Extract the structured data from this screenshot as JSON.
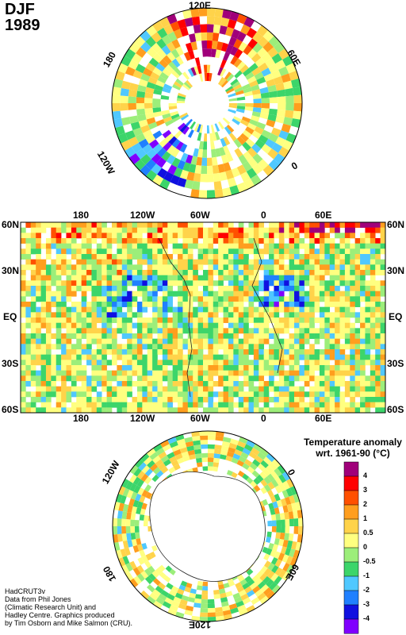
{
  "title": {
    "season": "DJF",
    "year": "1989"
  },
  "north_polar": {
    "labels": [
      "120E",
      "60E",
      "0",
      "120W",
      "180"
    ]
  },
  "world_map": {
    "top_lon_labels": [
      "180",
      "120W",
      "60W",
      "0",
      "60E"
    ],
    "bottom_lon_labels": [
      "180",
      "120W",
      "60W",
      "0",
      "60E"
    ],
    "lat_labels": [
      "60N",
      "30N",
      "EQ",
      "30S",
      "60S"
    ]
  },
  "south_polar": {
    "labels": [
      "120W",
      "0",
      "180",
      "60E",
      "120E"
    ]
  },
  "legend": {
    "title_line1": "Temperature anomaly",
    "title_line2": "wrt. 1961-90  (°C)",
    "levels": [
      "4",
      "3",
      "2",
      "1",
      "0.5",
      "0",
      "-0.5",
      "-1",
      "-2",
      "-3",
      "-4"
    ],
    "colors": [
      "#a0007a",
      "#ff0000",
      "#ff5000",
      "#ff9e1e",
      "#ffd34a",
      "#ffff80",
      "#9cee7a",
      "#3cd56a",
      "#50c8ff",
      "#2080ff",
      "#1010e0",
      "#8000ff"
    ]
  },
  "credits": {
    "line1": "HadCRUT3v",
    "line2": "Data from Phil Jones",
    "line3": "(Climatic Research Unit) and",
    "line4": "Hadley Centre.  Graphics produced",
    "line5": "by Tim Osborn and Mike Salmon (CRU)."
  }
}
